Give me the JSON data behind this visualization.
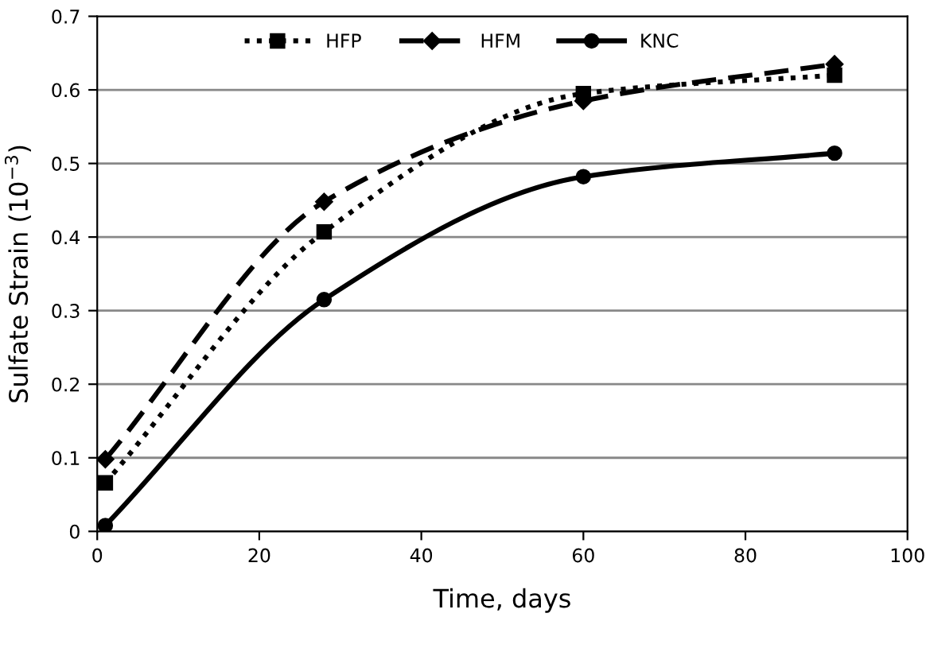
{
  "chart_data": {
    "type": "line",
    "xlabel": "Time, days",
    "ylabel": "Sulfate Strain (10$^{−3}$)",
    "x": [
      1,
      28,
      60,
      91
    ],
    "series": [
      {
        "name": "HFP",
        "color": "#000000",
        "values": [
          0.066,
          0.407,
          0.595,
          0.62
        ],
        "marker": "square",
        "line_style": "dotted"
      },
      {
        "name": "HFM",
        "color": "#000000",
        "values": [
          0.098,
          0.448,
          0.585,
          0.635
        ],
        "marker": "diamond",
        "line_style": "dashed"
      },
      {
        "name": "KNC",
        "color": "#000000",
        "values": [
          0.008,
          0.315,
          0.482,
          0.514
        ],
        "marker": "circle",
        "line_style": "solid"
      }
    ],
    "xlim": [
      0,
      100
    ],
    "xticks": [
      0,
      20,
      40,
      60,
      80,
      100
    ],
    "ylim": [
      0,
      0.7
    ],
    "yticks": [
      0,
      0.1,
      0.2,
      0.3,
      0.4,
      0.5,
      0.6,
      0.7
    ],
    "grid": "y",
    "legend": "top"
  }
}
